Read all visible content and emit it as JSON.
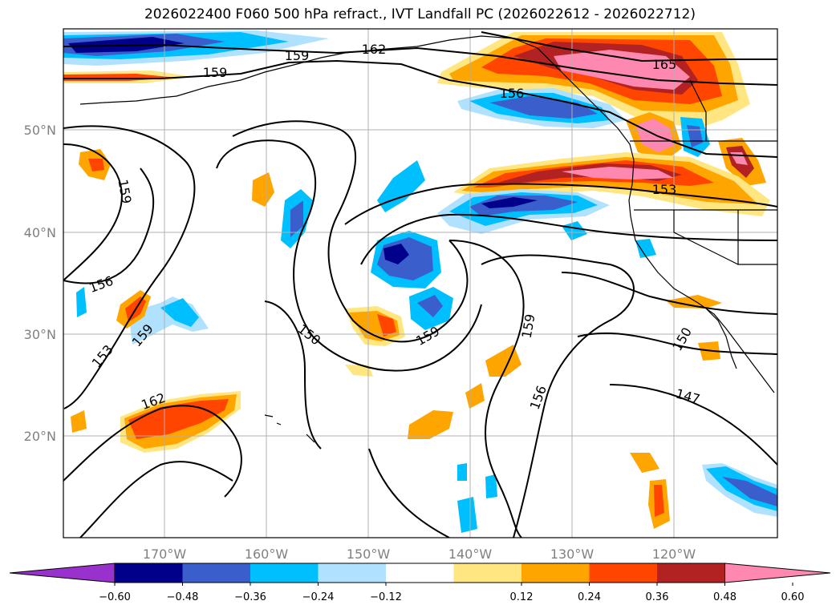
{
  "title": "2026022400 F060 500 hPa refract., IVT Landfall PC (2026022612 - 2026022712)",
  "lat_labels": [
    "50°N",
    "40°N",
    "30°N",
    "20°N"
  ],
  "lon_labels": [
    "170°W",
    "160°W",
    "150°W",
    "140°W",
    "130°W",
    "120°W"
  ],
  "contour_labels": [
    "159",
    "162",
    "159",
    "156",
    "165",
    "153",
    "159",
    "156",
    "153",
    "159",
    "150",
    "159",
    "159",
    "156",
    "150",
    "147",
    "162"
  ],
  "colorbar": {
    "ticks": [
      "−0.60",
      "−0.48",
      "−0.36",
      "−0.24",
      "−0.12",
      "0.12",
      "0.24",
      "0.36",
      "0.48",
      "0.60"
    ],
    "colors": [
      "#9932cc",
      "#00008b",
      "#3a5fcd",
      "#00bfff",
      "#b0e2ff",
      "#ffffff",
      "#ffe680",
      "#ffa500",
      "#ff4500",
      "#b22222",
      "#ff88b0"
    ]
  }
}
